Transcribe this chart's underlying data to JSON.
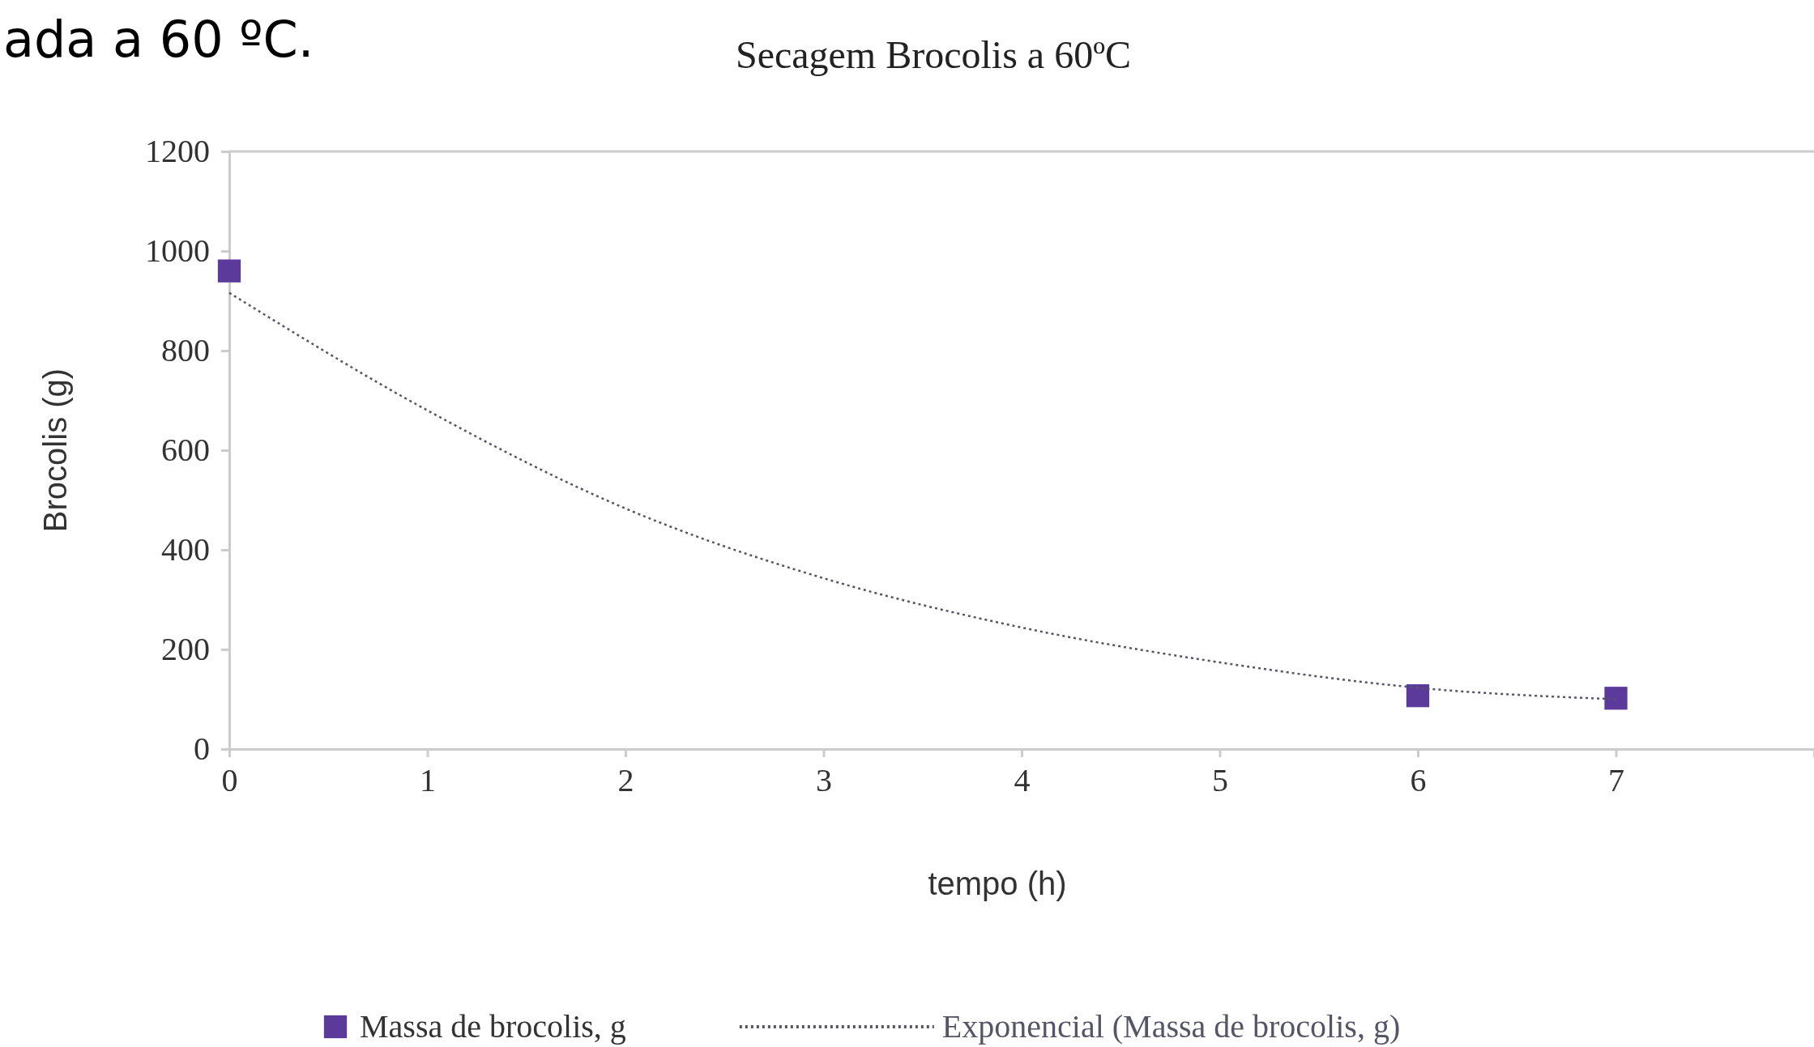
{
  "chart_data": {
    "type": "scatter",
    "title": "Secagem Brocolis a 60ºC",
    "xlabel": "tempo (h)",
    "ylabel": "Brocolis (g)",
    "annotations": [
      "ada a 60 ºC."
    ],
    "xlim": [
      0,
      8
    ],
    "xticks": [
      0,
      1,
      2,
      3,
      4,
      5,
      6,
      7
    ],
    "ylim": [
      0,
      1200
    ],
    "yticks": [
      0,
      200,
      400,
      600,
      800,
      1000,
      1200
    ],
    "grid": false,
    "legend": "bottom",
    "series": [
      {
        "name": "Massa de brocolis, g",
        "marker": "square",
        "color": "#5b3a9b",
        "x": [
          0,
          6,
          7
        ],
        "values": [
          960,
          107,
          102
        ]
      },
      {
        "name": "Exponencial (Massa de brocolis, g)",
        "type": "line",
        "marker": "none",
        "line_style": "dotted",
        "color": "#555566",
        "x": [
          0,
          1,
          2,
          3,
          4,
          5,
          6,
          7
        ],
        "values": [
          916,
          680,
          483,
          343,
          244,
          174,
          123,
          100
        ]
      }
    ]
  }
}
